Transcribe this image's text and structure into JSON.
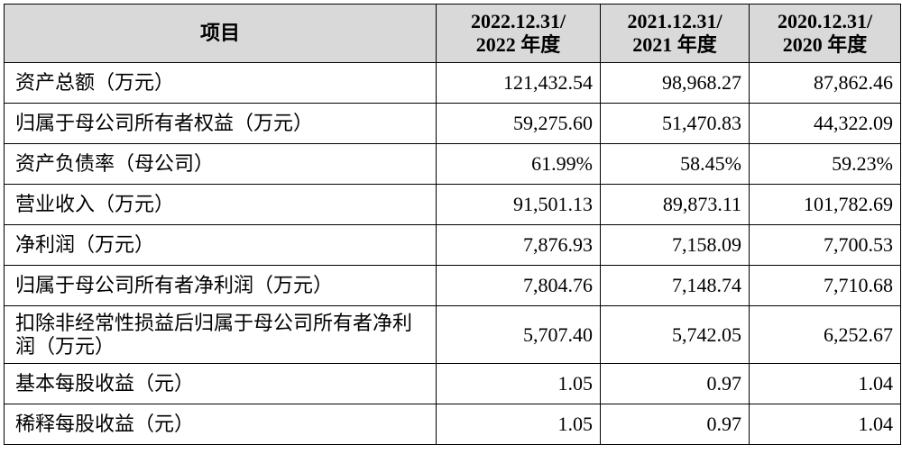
{
  "table": {
    "header": [
      [
        "项目"
      ],
      [
        "2022.12.31/",
        "2022 年度"
      ],
      [
        "2021.12.31/",
        "2021 年度"
      ],
      [
        "2020.12.31/",
        "2020 年度"
      ]
    ],
    "rows": [
      [
        "资产总额（万元）",
        "121,432.54",
        "98,968.27",
        "87,862.46"
      ],
      [
        "归属于母公司所有者权益（万元）",
        "59,275.60",
        "51,470.83",
        "44,322.09"
      ],
      [
        "资产负债率（母公司）",
        "61.99%",
        "58.45%",
        "59.23%"
      ],
      [
        "营业收入（万元）",
        "91,501.13",
        "89,873.11",
        "101,782.69"
      ],
      [
        "净利润（万元）",
        "7,876.93",
        "7,158.09",
        "7,700.53"
      ],
      [
        "归属于母公司所有者净利润（万元）",
        "7,804.76",
        "7,148.74",
        "7,710.68"
      ],
      [
        "扣除非经常性损益后归属于母公司所有者净利润（万元）",
        "5,707.40",
        "5,742.05",
        "6,252.67"
      ],
      [
        "基本每股收益（元）",
        "1.05",
        "0.97",
        "1.04"
      ],
      [
        "稀释每股收益（元）",
        "1.05",
        "0.97",
        "1.04"
      ]
    ]
  }
}
